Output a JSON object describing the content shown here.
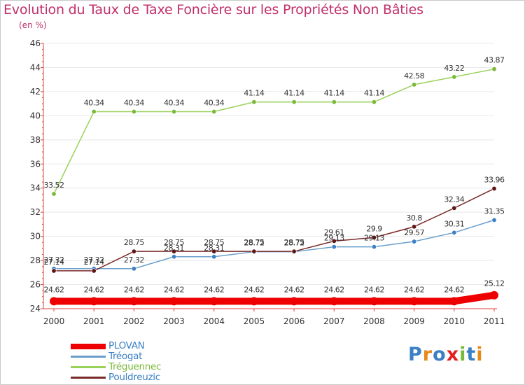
{
  "title": "Evolution du Taux de Taxe Foncière sur les Propriétés Non Bâties",
  "subtitle": "(en %)",
  "logo": {
    "text": "Proxiti",
    "letters": [
      {
        "ch": "P",
        "color": "#3b7fc4"
      },
      {
        "ch": "r",
        "color": "#e88a1a"
      },
      {
        "ch": "o",
        "color": "#3b7fc4"
      },
      {
        "ch": "x",
        "color": "#e02020"
      },
      {
        "ch": "i",
        "color": "#7ab83a"
      },
      {
        "ch": "t",
        "color": "#3b7fc4"
      },
      {
        "ch": "i",
        "color": "#e88a1a"
      }
    ]
  },
  "colors": {
    "axis": "#e04040",
    "grid": "#e8e8e8",
    "frame_border": "#c8c8c8"
  },
  "chart_data": {
    "type": "line",
    "title": "Evolution du Taux de Taxe Foncière sur les Propriétés Non Bâties",
    "ylabel": "(en %)",
    "xlabel": "",
    "x": [
      "2000",
      "2001",
      "2002",
      "2003",
      "2004",
      "2005",
      "2006",
      "2007",
      "2008",
      "2009",
      "2010",
      "2011"
    ],
    "ylim": [
      24,
      46
    ],
    "yticks": [
      24,
      26,
      28,
      30,
      32,
      34,
      36,
      38,
      40,
      42,
      44,
      46
    ],
    "grid": true,
    "legend_position": "bottom-left",
    "series": [
      {
        "name": "PLOVAN",
        "color": "#ee0000",
        "marker": "#ee0000",
        "thick": true,
        "values": [
          24.62,
          24.62,
          24.62,
          24.62,
          24.62,
          24.62,
          24.62,
          24.62,
          24.62,
          24.62,
          24.62,
          25.12
        ],
        "labels": [
          "24.62",
          "24.62",
          "24.62",
          "24.62",
          "24.62",
          "24.62",
          "24.62",
          "24.62",
          "24.62",
          "24.62",
          "24.62",
          "25.12"
        ]
      },
      {
        "name": "Tréogat",
        "color": "#6a9fcb",
        "marker": "#3b7fc4",
        "thick": false,
        "values": [
          27.32,
          27.32,
          27.32,
          28.31,
          28.31,
          28.72,
          28.72,
          29.13,
          29.13,
          29.57,
          30.31,
          31.35
        ],
        "labels": [
          "27.32",
          "27.32",
          "27.32",
          "28.31",
          "28.31",
          "28.72",
          "28.72",
          "29.13",
          "29.13",
          "29.57",
          "30.31",
          "31.35"
        ]
      },
      {
        "name": "Tréguennec",
        "color": "#99d15a",
        "marker": "#7ab83a",
        "thick": false,
        "values": [
          33.52,
          40.34,
          40.34,
          40.34,
          40.34,
          41.14,
          41.14,
          41.14,
          41.14,
          42.58,
          43.22,
          43.87
        ],
        "labels": [
          "33.52",
          "40.34",
          "40.34",
          "40.34",
          "40.34",
          "41.14",
          "41.14",
          "41.14",
          "41.14",
          "42.58",
          "43.22",
          "43.87"
        ]
      },
      {
        "name": "Pouldreuzic",
        "color": "#7a2a2a",
        "marker": "#5c1616",
        "thick": false,
        "values": [
          27.14,
          27.14,
          28.75,
          28.75,
          28.75,
          28.75,
          28.75,
          29.61,
          29.9,
          30.8,
          32.34,
          33.96
        ],
        "labels": [
          "27.14",
          "27.14",
          "28.75",
          "28.75",
          "28.75",
          "28.75",
          "28.75",
          "29.61",
          "29.9",
          "30.8",
          "32.34",
          "33.96"
        ]
      }
    ]
  }
}
